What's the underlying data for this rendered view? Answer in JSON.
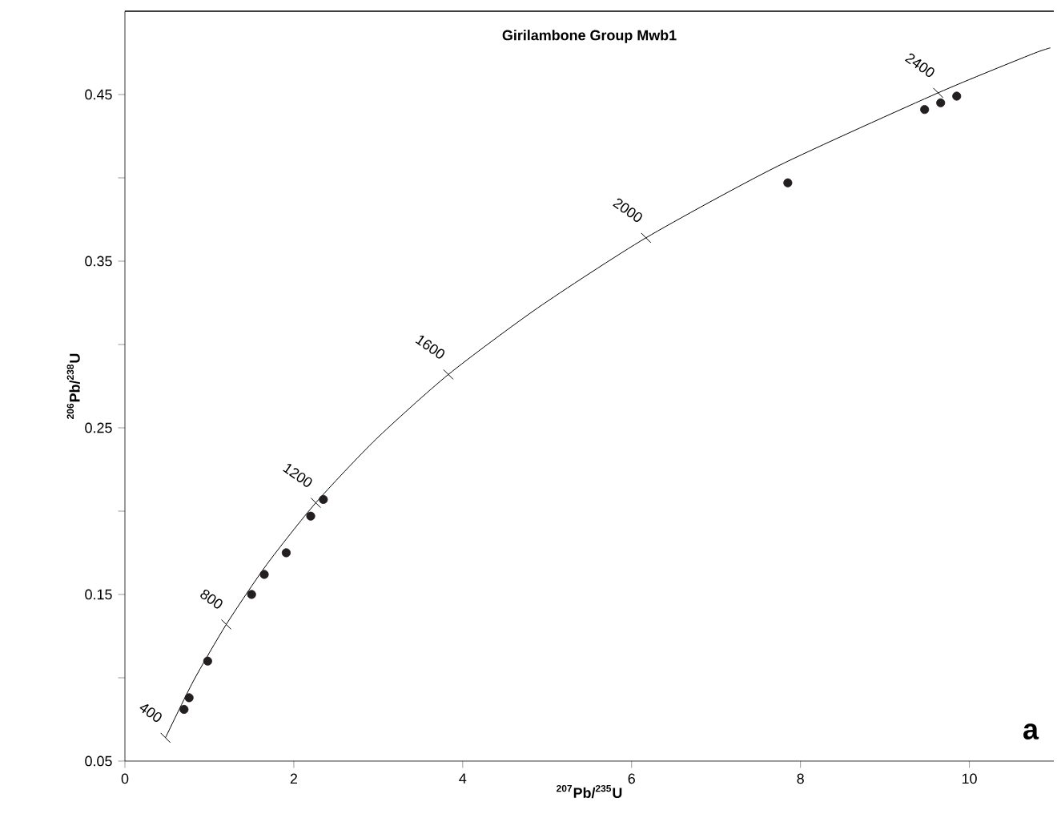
{
  "chart_data": {
    "type": "scatter",
    "title": "Girilambone Group Mwb1",
    "xlabel": "$^{207}$Pb/$^{235}$U",
    "ylabel": "$^{206}$Pb/$^{238}$U",
    "xlim": [
      0,
      11
    ],
    "ylim": [
      0.05,
      0.5
    ],
    "xticks": [
      0,
      2,
      4,
      6,
      8,
      10
    ],
    "yticks": [
      0.05,
      {
        "value": 0.1,
        "label": null
      },
      0.15,
      {
        "value": 0.2,
        "label": null
      },
      0.25,
      {
        "value": 0.3,
        "label": null
      },
      0.35,
      {
        "value": 0.4,
        "label": null
      },
      0.45
    ],
    "grid": false,
    "marker": "circle",
    "series": [
      {
        "type": "line",
        "color": "#000000",
        "marker": "none",
        "x": [
          0.48,
          0.81,
          1.2,
          1.68,
          2.26,
          2.97,
          3.83,
          4.89,
          6.17,
          7.73,
          9.63,
          10.73,
          10.96
        ],
        "values": [
          0.064,
          0.098,
          0.132,
          0.168,
          0.205,
          0.243,
          0.282,
          0.322,
          0.364,
          0.407,
          0.451,
          0.474,
          0.478
        ]
      },
      {
        "color": "#231f20",
        "x": [
          0.7,
          0.76,
          0.98,
          1.5,
          1.65,
          1.91,
          2.2,
          2.35,
          7.85,
          9.47,
          9.66,
          9.85
        ],
        "values": [
          0.081,
          0.088,
          0.11,
          0.15,
          0.162,
          0.175,
          0.197,
          0.207,
          0.397,
          0.441,
          0.445,
          0.449
        ]
      }
    ],
    "annotations": [
      {
        "text": "400",
        "x": 0.48,
        "y": 0.064
      },
      {
        "text": "800",
        "x": 1.2,
        "y": 0.132
      },
      {
        "text": "1200",
        "x": 2.26,
        "y": 0.205
      },
      {
        "text": "1600",
        "x": 3.83,
        "y": 0.282
      },
      {
        "text": "2000",
        "x": 6.17,
        "y": 0.364
      },
      {
        "text": "2400",
        "x": 9.63,
        "y": 0.451
      },
      "a"
    ]
  }
}
